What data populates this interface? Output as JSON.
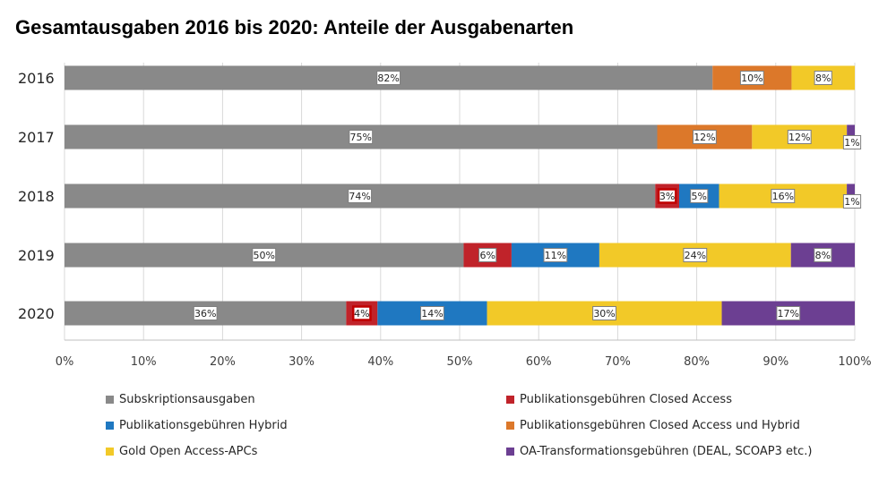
{
  "chart_data": {
    "type": "bar",
    "orientation": "horizontal",
    "stacked": true,
    "normalized": true,
    "title": "Gesamtausgaben 2016 bis 2020: Anteile der Ausgabenarten",
    "categories": [
      "2016",
      "2017",
      "2018",
      "2019",
      "2020"
    ],
    "xlim": [
      0,
      100
    ],
    "xticks": [
      "0%",
      "10%",
      "20%",
      "30%",
      "40%",
      "50%",
      "60%",
      "70%",
      "80%",
      "90%",
      "100%"
    ],
    "grid": true,
    "legend_position": "bottom",
    "series": [
      {
        "name": "Subskriptionsausgaben",
        "color": "#898989",
        "values": [
          82,
          75,
          74,
          50,
          36
        ],
        "labels": [
          "82%",
          "75%",
          "74%",
          "50%",
          "36%"
        ]
      },
      {
        "name": "Publikationsgebühren Closed Access",
        "color": "#c0232a",
        "values": [
          0,
          0,
          3,
          6,
          4
        ],
        "labels": [
          "",
          "",
          "3%",
          "6%",
          "4%"
        ],
        "highlighted": [
          false,
          false,
          true,
          false,
          true
        ]
      },
      {
        "name": "Publikationsgebühren Hybrid",
        "color": "#1f78c1",
        "values": [
          0,
          0,
          5,
          11,
          14
        ],
        "labels": [
          "",
          "",
          "5%",
          "11%",
          "14%"
        ]
      },
      {
        "name": "Publikationsgebühren Closed Access und Hybrid",
        "color": "#dc782a",
        "values": [
          10,
          12,
          0,
          0,
          0
        ],
        "labels": [
          "10%",
          "12%",
          "",
          "",
          ""
        ]
      },
      {
        "name": "Gold Open Access-APCs",
        "color": "#f2c928",
        "values": [
          8,
          12,
          16,
          24,
          30
        ],
        "labels": [
          "8%",
          "12%",
          "16%",
          "24%",
          "30%"
        ]
      },
      {
        "name": "OA-Transformationsgebühren (DEAL, SCOAP3 etc.)",
        "color": "#6c3f92",
        "values": [
          0,
          1,
          1,
          8,
          17
        ],
        "labels": [
          "",
          "1%",
          "1%",
          "8%",
          "17%"
        ]
      }
    ]
  },
  "legend": [
    {
      "label": "Subskriptionsausgaben",
      "color": "#898989"
    },
    {
      "label": "Publikationsgebühren Closed Access",
      "color": "#c0232a"
    },
    {
      "label": "Publikationsgebühren Hybrid",
      "color": "#1f78c1"
    },
    {
      "label": "Publikationsgebühren Closed Access und Hybrid",
      "color": "#dc782a"
    },
    {
      "label": "Gold Open Access-APCs",
      "color": "#f2c928"
    },
    {
      "label": "OA-Transformationsgebühren (DEAL, SCOAP3 etc.)",
      "color": "#6c3f92"
    }
  ]
}
